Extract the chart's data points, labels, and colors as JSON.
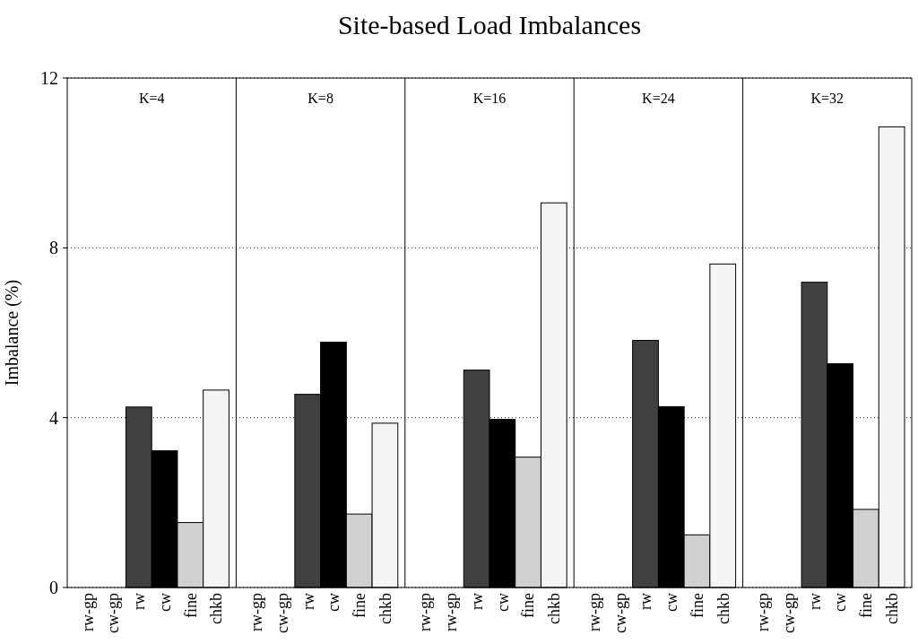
{
  "chart_data": {
    "type": "bar",
    "title": "Site-based Load Imbalances",
    "ylabel": "Imbalance (%)",
    "annotations": [
      "K=4",
      "K=8",
      "K=16",
      "K=24",
      "K=32"
    ],
    "categories": [
      "rw-gp",
      "cw-gp",
      "rw",
      "cw",
      "fine",
      "chkb",
      "rw-gp",
      "cw-gp",
      "rw",
      "cw",
      "fine",
      "chkb",
      "rw-gp",
      "rw-gp",
      "rw",
      "cw",
      "fine",
      "chkb",
      "rw-gp",
      "cw-gp",
      "rw",
      "cw",
      "fine",
      "chkb",
      "rw-gp",
      "cw-gp",
      "rw",
      "cw",
      "fine",
      "chkb"
    ],
    "values": [
      0,
      0,
      4.25,
      3.22,
      1.53,
      4.65,
      0,
      0,
      4.55,
      5.78,
      1.73,
      3.87,
      0,
      0,
      5.12,
      3.96,
      3.07,
      9.06,
      0,
      0,
      5.82,
      4.26,
      1.24,
      7.62,
      0,
      0,
      7.19,
      5.27,
      1.84,
      10.85
    ],
    "colors": [
      "#404040",
      "#000000",
      "#404040",
      "#000000",
      "#d0d0d0",
      "#f4f4f4",
      "#404040",
      "#000000",
      "#404040",
      "#000000",
      "#d0d0d0",
      "#f4f4f4",
      "#404040",
      "#000000",
      "#404040",
      "#000000",
      "#d0d0d0",
      "#f4f4f4",
      "#404040",
      "#000000",
      "#404040",
      "#000000",
      "#d0d0d0",
      "#f4f4f4",
      "#404040",
      "#000000",
      "#404040",
      "#000000",
      "#d0d0d0",
      "#f4f4f4"
    ],
    "ylim": [
      0,
      12
    ],
    "yticks": [
      0,
      4,
      8,
      12
    ],
    "grid": "y"
  }
}
